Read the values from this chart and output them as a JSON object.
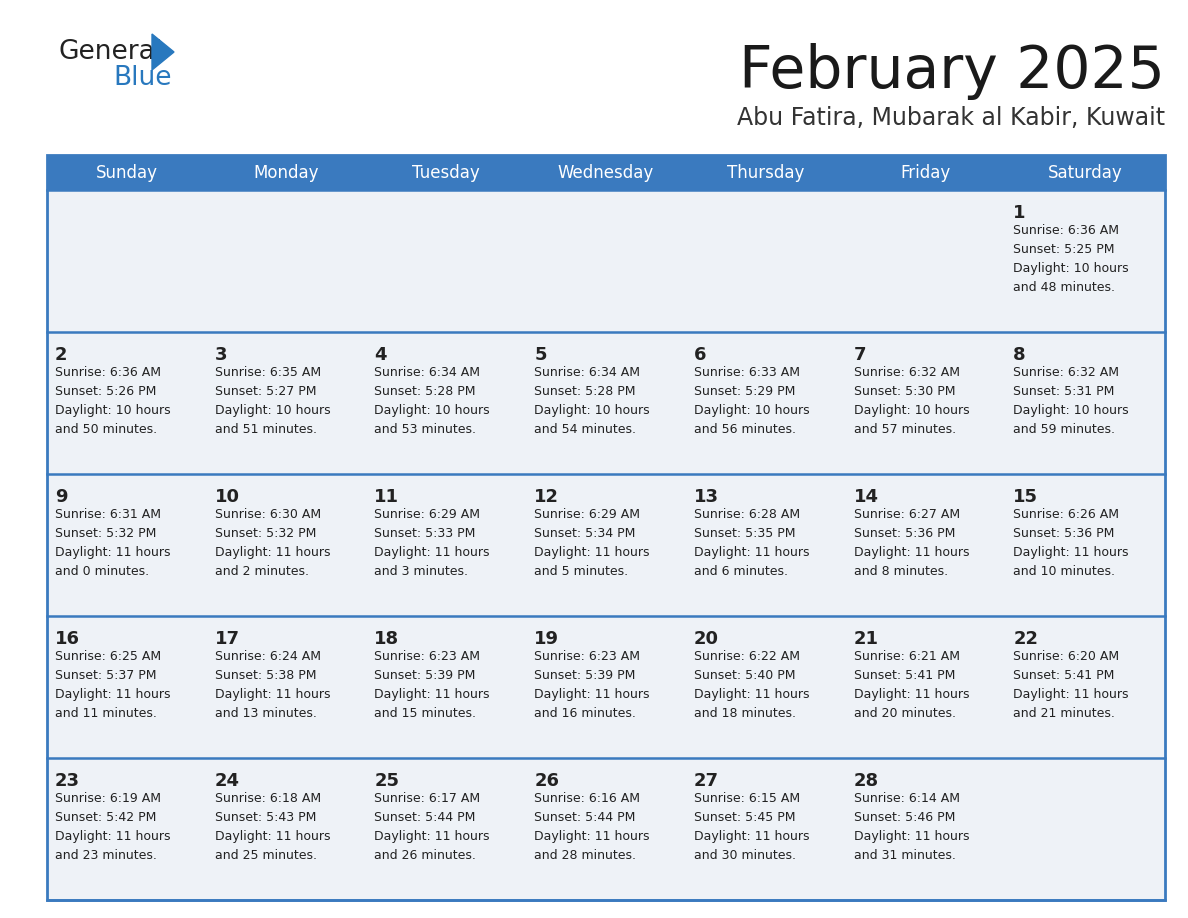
{
  "title": "February 2025",
  "subtitle": "Abu Fatira, Mubarak al Kabir, Kuwait",
  "header_bg": "#3a7abf",
  "header_text": "#ffffff",
  "row_bg": "#eef2f7",
  "cell_text": "#222222",
  "border_color": "#3a7abf",
  "divider_color": "#cccccc",
  "days_of_week": [
    "Sunday",
    "Monday",
    "Tuesday",
    "Wednesday",
    "Thursday",
    "Friday",
    "Saturday"
  ],
  "calendar_data": [
    [
      {
        "day": null,
        "sunrise": null,
        "sunset": null,
        "daylight_line1": null,
        "daylight_line2": null
      },
      {
        "day": null,
        "sunrise": null,
        "sunset": null,
        "daylight_line1": null,
        "daylight_line2": null
      },
      {
        "day": null,
        "sunrise": null,
        "sunset": null,
        "daylight_line1": null,
        "daylight_line2": null
      },
      {
        "day": null,
        "sunrise": null,
        "sunset": null,
        "daylight_line1": null,
        "daylight_line2": null
      },
      {
        "day": null,
        "sunrise": null,
        "sunset": null,
        "daylight_line1": null,
        "daylight_line2": null
      },
      {
        "day": null,
        "sunrise": null,
        "sunset": null,
        "daylight_line1": null,
        "daylight_line2": null
      },
      {
        "day": "1",
        "sunrise": "Sunrise: 6:36 AM",
        "sunset": "Sunset: 5:25 PM",
        "daylight_line1": "Daylight: 10 hours",
        "daylight_line2": "and 48 minutes."
      }
    ],
    [
      {
        "day": "2",
        "sunrise": "Sunrise: 6:36 AM",
        "sunset": "Sunset: 5:26 PM",
        "daylight_line1": "Daylight: 10 hours",
        "daylight_line2": "and 50 minutes."
      },
      {
        "day": "3",
        "sunrise": "Sunrise: 6:35 AM",
        "sunset": "Sunset: 5:27 PM",
        "daylight_line1": "Daylight: 10 hours",
        "daylight_line2": "and 51 minutes."
      },
      {
        "day": "4",
        "sunrise": "Sunrise: 6:34 AM",
        "sunset": "Sunset: 5:28 PM",
        "daylight_line1": "Daylight: 10 hours",
        "daylight_line2": "and 53 minutes."
      },
      {
        "day": "5",
        "sunrise": "Sunrise: 6:34 AM",
        "sunset": "Sunset: 5:28 PM",
        "daylight_line1": "Daylight: 10 hours",
        "daylight_line2": "and 54 minutes."
      },
      {
        "day": "6",
        "sunrise": "Sunrise: 6:33 AM",
        "sunset": "Sunset: 5:29 PM",
        "daylight_line1": "Daylight: 10 hours",
        "daylight_line2": "and 56 minutes."
      },
      {
        "day": "7",
        "sunrise": "Sunrise: 6:32 AM",
        "sunset": "Sunset: 5:30 PM",
        "daylight_line1": "Daylight: 10 hours",
        "daylight_line2": "and 57 minutes."
      },
      {
        "day": "8",
        "sunrise": "Sunrise: 6:32 AM",
        "sunset": "Sunset: 5:31 PM",
        "daylight_line1": "Daylight: 10 hours",
        "daylight_line2": "and 59 minutes."
      }
    ],
    [
      {
        "day": "9",
        "sunrise": "Sunrise: 6:31 AM",
        "sunset": "Sunset: 5:32 PM",
        "daylight_line1": "Daylight: 11 hours",
        "daylight_line2": "and 0 minutes."
      },
      {
        "day": "10",
        "sunrise": "Sunrise: 6:30 AM",
        "sunset": "Sunset: 5:32 PM",
        "daylight_line1": "Daylight: 11 hours",
        "daylight_line2": "and 2 minutes."
      },
      {
        "day": "11",
        "sunrise": "Sunrise: 6:29 AM",
        "sunset": "Sunset: 5:33 PM",
        "daylight_line1": "Daylight: 11 hours",
        "daylight_line2": "and 3 minutes."
      },
      {
        "day": "12",
        "sunrise": "Sunrise: 6:29 AM",
        "sunset": "Sunset: 5:34 PM",
        "daylight_line1": "Daylight: 11 hours",
        "daylight_line2": "and 5 minutes."
      },
      {
        "day": "13",
        "sunrise": "Sunrise: 6:28 AM",
        "sunset": "Sunset: 5:35 PM",
        "daylight_line1": "Daylight: 11 hours",
        "daylight_line2": "and 6 minutes."
      },
      {
        "day": "14",
        "sunrise": "Sunrise: 6:27 AM",
        "sunset": "Sunset: 5:36 PM",
        "daylight_line1": "Daylight: 11 hours",
        "daylight_line2": "and 8 minutes."
      },
      {
        "day": "15",
        "sunrise": "Sunrise: 6:26 AM",
        "sunset": "Sunset: 5:36 PM",
        "daylight_line1": "Daylight: 11 hours",
        "daylight_line2": "and 10 minutes."
      }
    ],
    [
      {
        "day": "16",
        "sunrise": "Sunrise: 6:25 AM",
        "sunset": "Sunset: 5:37 PM",
        "daylight_line1": "Daylight: 11 hours",
        "daylight_line2": "and 11 minutes."
      },
      {
        "day": "17",
        "sunrise": "Sunrise: 6:24 AM",
        "sunset": "Sunset: 5:38 PM",
        "daylight_line1": "Daylight: 11 hours",
        "daylight_line2": "and 13 minutes."
      },
      {
        "day": "18",
        "sunrise": "Sunrise: 6:23 AM",
        "sunset": "Sunset: 5:39 PM",
        "daylight_line1": "Daylight: 11 hours",
        "daylight_line2": "and 15 minutes."
      },
      {
        "day": "19",
        "sunrise": "Sunrise: 6:23 AM",
        "sunset": "Sunset: 5:39 PM",
        "daylight_line1": "Daylight: 11 hours",
        "daylight_line2": "and 16 minutes."
      },
      {
        "day": "20",
        "sunrise": "Sunrise: 6:22 AM",
        "sunset": "Sunset: 5:40 PM",
        "daylight_line1": "Daylight: 11 hours",
        "daylight_line2": "and 18 minutes."
      },
      {
        "day": "21",
        "sunrise": "Sunrise: 6:21 AM",
        "sunset": "Sunset: 5:41 PM",
        "daylight_line1": "Daylight: 11 hours",
        "daylight_line2": "and 20 minutes."
      },
      {
        "day": "22",
        "sunrise": "Sunrise: 6:20 AM",
        "sunset": "Sunset: 5:41 PM",
        "daylight_line1": "Daylight: 11 hours",
        "daylight_line2": "and 21 minutes."
      }
    ],
    [
      {
        "day": "23",
        "sunrise": "Sunrise: 6:19 AM",
        "sunset": "Sunset: 5:42 PM",
        "daylight_line1": "Daylight: 11 hours",
        "daylight_line2": "and 23 minutes."
      },
      {
        "day": "24",
        "sunrise": "Sunrise: 6:18 AM",
        "sunset": "Sunset: 5:43 PM",
        "daylight_line1": "Daylight: 11 hours",
        "daylight_line2": "and 25 minutes."
      },
      {
        "day": "25",
        "sunrise": "Sunrise: 6:17 AM",
        "sunset": "Sunset: 5:44 PM",
        "daylight_line1": "Daylight: 11 hours",
        "daylight_line2": "and 26 minutes."
      },
      {
        "day": "26",
        "sunrise": "Sunrise: 6:16 AM",
        "sunset": "Sunset: 5:44 PM",
        "daylight_line1": "Daylight: 11 hours",
        "daylight_line2": "and 28 minutes."
      },
      {
        "day": "27",
        "sunrise": "Sunrise: 6:15 AM",
        "sunset": "Sunset: 5:45 PM",
        "daylight_line1": "Daylight: 11 hours",
        "daylight_line2": "and 30 minutes."
      },
      {
        "day": "28",
        "sunrise": "Sunrise: 6:14 AM",
        "sunset": "Sunset: 5:46 PM",
        "daylight_line1": "Daylight: 11 hours",
        "daylight_line2": "and 31 minutes."
      },
      {
        "day": null,
        "sunrise": null,
        "sunset": null,
        "daylight_line1": null,
        "daylight_line2": null
      }
    ]
  ],
  "logo_color_general": "#222222",
  "logo_color_blue": "#2878be",
  "logo_triangle_color": "#2878be"
}
